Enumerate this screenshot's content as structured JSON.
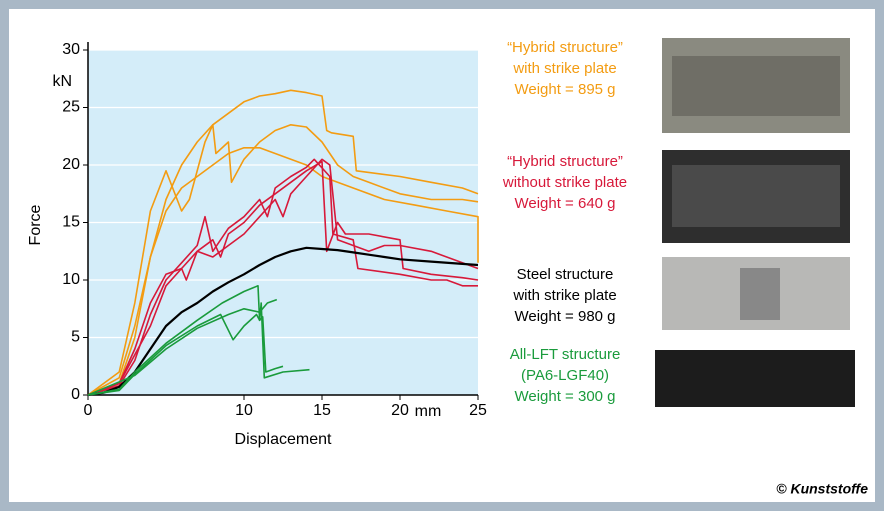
{
  "chart_data": {
    "type": "line",
    "x_label": "Displacement",
    "y_label": "Force",
    "y_unit": "kN",
    "x_unit": "mm",
    "xlim": [
      0,
      25
    ],
    "ylim": [
      0,
      30
    ],
    "xticks": [
      0,
      10,
      15,
      20,
      25
    ],
    "yticks": [
      0,
      5,
      10,
      15,
      20,
      25,
      30
    ],
    "grid": true,
    "background": "#d4edf9",
    "credit": "© Kunststoffe",
    "series": [
      {
        "color": "#f39c12",
        "legend_lines": [
          "“Hybrid structure”",
          "with strike plate",
          "Weight = 895 g"
        ],
        "x": [
          0,
          2,
          3,
          4,
          5,
          6,
          7,
          8,
          9,
          10,
          11,
          12,
          13,
          14,
          15,
          15.3,
          15.6,
          17,
          17.2,
          20,
          22,
          24,
          25
        ],
        "values": [
          0,
          1,
          5,
          12,
          17,
          20,
          22,
          23.5,
          24.5,
          25.5,
          26,
          26.2,
          26.5,
          26.3,
          26,
          23,
          22.8,
          22.5,
          19.5,
          19,
          18.5,
          18,
          17.5
        ]
      },
      {
        "color": "#f39c12",
        "legend_lines": null,
        "x": [
          0,
          2,
          3,
          4,
          5,
          6,
          6.5,
          7.5,
          8,
          8.2,
          9,
          9.2,
          10,
          11,
          12,
          13,
          14,
          15,
          16,
          17,
          18,
          20,
          22,
          24,
          25
        ],
        "values": [
          0,
          2,
          8,
          16,
          19.5,
          16,
          17,
          22,
          23.5,
          21,
          22,
          18.5,
          20.5,
          22,
          23,
          23.5,
          23.3,
          22,
          20,
          19,
          18.5,
          17.5,
          17,
          17,
          16.8
        ]
      },
      {
        "color": "#f39c12",
        "legend_lines": null,
        "x": [
          0,
          2,
          3,
          4,
          5,
          6,
          7,
          8,
          9,
          10,
          11,
          12,
          13,
          14,
          15,
          17,
          19,
          21,
          23,
          25,
          25
        ],
        "values": [
          0,
          1.5,
          6,
          12,
          16,
          18,
          19,
          20,
          21,
          21.5,
          21.5,
          21,
          20.5,
          20,
          19,
          18,
          17,
          16.5,
          16,
          15.5,
          11.5
        ]
      },
      {
        "color": "#d7193a",
        "legend_lines": [
          "“Hybrid structure”",
          "without strike plate",
          "Weight = 640 g"
        ],
        "x": [
          0,
          2,
          3,
          4,
          5,
          6,
          6.3,
          7,
          8,
          8.5,
          9,
          10,
          11,
          12,
          13,
          14,
          15,
          15.3,
          16,
          16.5,
          18,
          20,
          20.2,
          22,
          24,
          25
        ],
        "values": [
          0,
          1,
          4,
          8,
          10.5,
          11,
          10,
          12.5,
          13.5,
          12,
          14,
          15,
          16.5,
          17.5,
          18.5,
          19.5,
          20.3,
          12.5,
          15,
          14,
          14,
          13.5,
          11,
          10.5,
          10.2,
          10
        ]
      },
      {
        "color": "#d7193a",
        "legend_lines": null,
        "x": [
          0,
          2,
          3,
          4,
          5,
          6,
          7,
          7.5,
          8,
          9,
          10,
          11,
          11.5,
          12,
          13,
          14,
          14.5,
          15.5,
          15.7,
          17,
          17.3,
          20,
          22,
          23,
          24,
          25
        ],
        "values": [
          0,
          0.8,
          3,
          7,
          10,
          11.5,
          13,
          15.5,
          12.5,
          14.5,
          15.5,
          17,
          15.5,
          18,
          19,
          19.8,
          20.5,
          19,
          14,
          13.5,
          11,
          10.5,
          10,
          10,
          9.5,
          9.5
        ]
      },
      {
        "color": "#d7193a",
        "legend_lines": null,
        "x": [
          0,
          2,
          3,
          4,
          5,
          6,
          7,
          8,
          9,
          10,
          11,
          12,
          12.5,
          13,
          14,
          15,
          15.5,
          16,
          18,
          19,
          20,
          22,
          24,
          25
        ],
        "values": [
          0,
          1,
          3.5,
          6,
          9.5,
          11,
          12.5,
          12,
          13,
          14,
          15.5,
          17,
          15.5,
          17.5,
          19,
          20.5,
          20,
          13.5,
          12.5,
          13,
          13,
          12.5,
          11.5,
          11
        ]
      },
      {
        "color": "#000000",
        "legend_lines": [
          "Steel structure",
          "with strike plate",
          "Weight = 980 g"
        ],
        "x": [
          0,
          1,
          2,
          3,
          4,
          5,
          6,
          7,
          8,
          9,
          10,
          11,
          12,
          13,
          14,
          15,
          16,
          17,
          18,
          19,
          20,
          22,
          24,
          25
        ],
        "values": [
          0,
          0.2,
          0.7,
          2,
          4,
          6,
          7.2,
          8,
          9,
          9.8,
          10.5,
          11.3,
          12,
          12.5,
          12.8,
          12.7,
          12.6,
          12.4,
          12.2,
          12,
          11.8,
          11.6,
          11.4,
          11.3
        ]
      },
      {
        "color": "#1a9b3c",
        "legend_lines": [
          "All-LFT structure",
          "(PA6-LGF40)",
          "Weight = 300 g"
        ],
        "x": [
          0,
          2,
          3,
          5,
          7,
          8.6,
          10,
          10.9,
          11,
          11.1,
          11.3,
          12.5,
          14.2
        ],
        "values": [
          0,
          0.5,
          2,
          4.5,
          6.5,
          8,
          9,
          9.5,
          6.5,
          8,
          1.5,
          2,
          2.2
        ]
      },
      {
        "color": "#1a9b3c",
        "legend_lines": null,
        "x": [
          0,
          2,
          3,
          5,
          7,
          8.5,
          9.3,
          10,
          10.8,
          11,
          11.2,
          11.4,
          12,
          12.5
        ],
        "values": [
          0,
          0.4,
          1.8,
          4.3,
          6,
          7,
          4.8,
          6,
          7,
          6.5,
          6.8,
          2,
          2.3,
          2.5
        ]
      },
      {
        "color": "#1a9b3c",
        "legend_lines": null,
        "x": [
          0,
          3,
          5,
          7,
          9,
          10,
          11,
          11.5,
          12.1
        ],
        "values": [
          0,
          1.7,
          4,
          5.8,
          7,
          7.5,
          7.2,
          8,
          8.3
        ]
      }
    ]
  }
}
